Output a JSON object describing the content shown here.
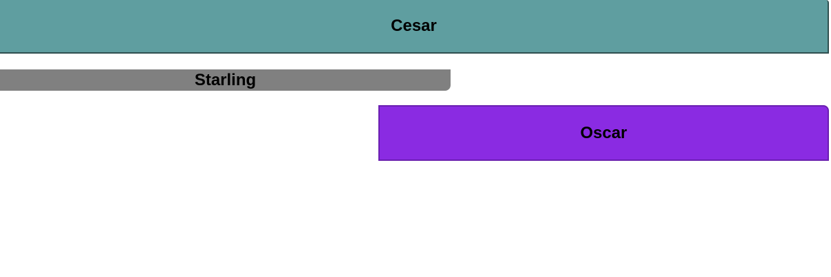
{
  "buttons": {
    "cesar": {
      "label": "Cesar",
      "color": "#5f9ea0",
      "border_color": "#2f4f4f"
    },
    "starling": {
      "label": "Starling",
      "color": "#808080"
    },
    "oscar": {
      "label": "Oscar",
      "color": "#8a2be2",
      "border_color": "#6a1fb0"
    }
  }
}
